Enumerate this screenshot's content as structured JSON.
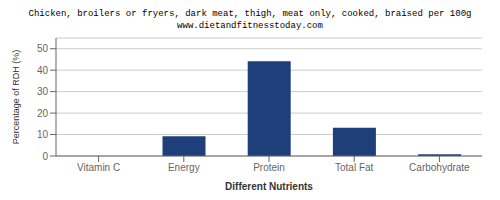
{
  "chart_data": {
    "type": "bar",
    "title": "Chicken, broilers or fryers, dark meat, thigh, meat only, cooked, braised per 100g",
    "subtitle": "www.dietandfitnesstoday.com",
    "categories": [
      "Vitamin C",
      "Energy",
      "Protein",
      "Total Fat",
      "Carbohydrate"
    ],
    "values": [
      0.0,
      9.2,
      44.2,
      13.2,
      0.8
    ],
    "color": "#1F3F7A",
    "xlabel": "Different Nutrients",
    "ylabel": "Percentage of RDH (%)",
    "ylim": [
      0,
      55
    ],
    "yticks": [
      0,
      10,
      20,
      30,
      40,
      50
    ],
    "grid": true
  }
}
